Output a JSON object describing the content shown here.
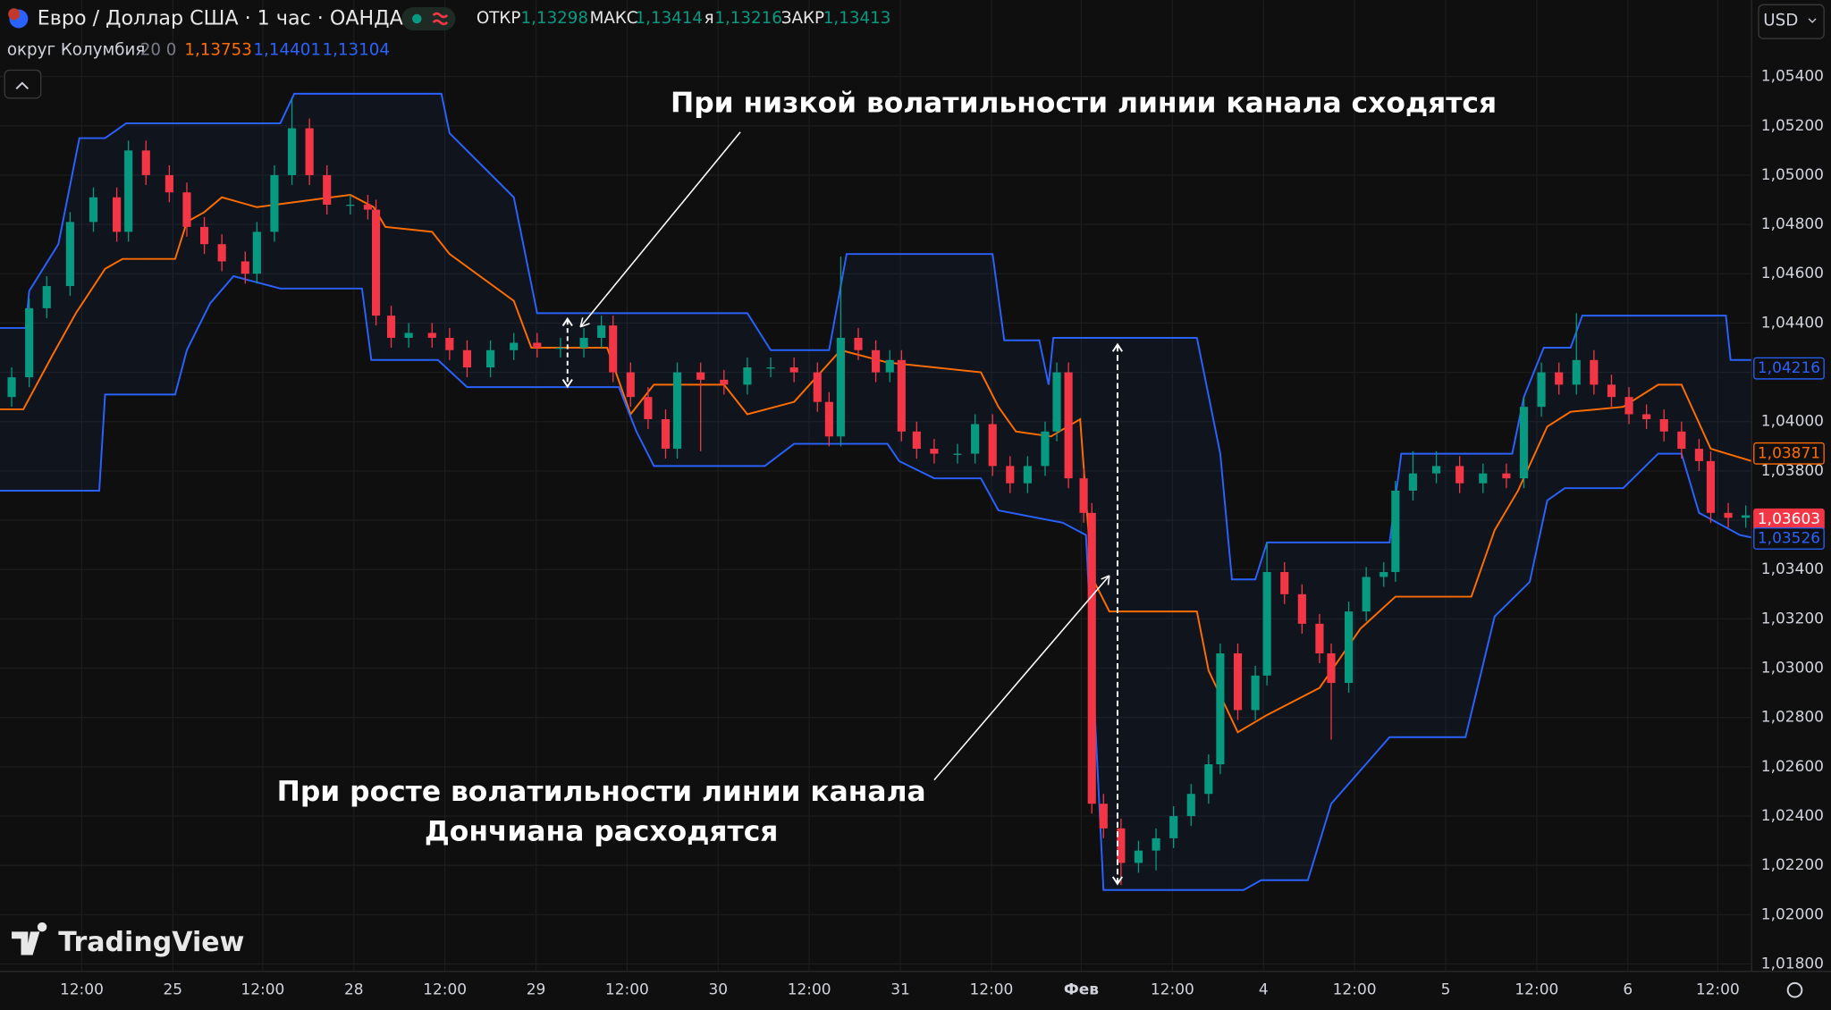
{
  "header": {
    "symbol": "Евро / Доллар США · 1 час · ОАНДА",
    "open_label": "ОТКР",
    "open": "1,13298",
    "high_label": "МАКС",
    "high": "1,13414",
    "low_label": "я",
    "low": "1,13216",
    "close_label": "ЗАКР",
    "close": "1,13413",
    "currency": "USD"
  },
  "indicator": {
    "name": "округ Колумбия",
    "params": "20 0",
    "middle": "1,13753",
    "upper": "1,14401",
    "lower": "1,13104"
  },
  "brand": "TradingView",
  "chart_data": {
    "type": "candlestick",
    "up_color": "#089981",
    "down_color": "#f23645",
    "grid": true,
    "annotations": [
      "При низкой волатильности линии канала сходятся",
      "При росте волатильности линии канала",
      "Дончиана расходятся"
    ],
    "ylim": [
      1.0177,
      1.0571
    ],
    "yticks": [
      {
        "value": 1.018,
        "label": "1,01800"
      },
      {
        "value": 1.02,
        "label": "1,02000"
      },
      {
        "value": 1.022,
        "label": "1,02200"
      },
      {
        "value": 1.024,
        "label": "1,02400"
      },
      {
        "value": 1.026,
        "label": "1,02600"
      },
      {
        "value": 1.028,
        "label": "1,02800"
      },
      {
        "value": 1.03,
        "label": "1,03000"
      },
      {
        "value": 1.032,
        "label": "1,03200"
      },
      {
        "value": 1.034,
        "label": "1,03400"
      },
      {
        "value": 1.036,
        "label": "1,03600"
      },
      {
        "value": 1.038,
        "label": "1,03800"
      },
      {
        "value": 1.04,
        "label": "1,04000"
      },
      {
        "value": 1.042,
        "label": "1,04200"
      },
      {
        "value": 1.044,
        "label": "1,04400"
      },
      {
        "value": 1.046,
        "label": "1,04600"
      },
      {
        "value": 1.048,
        "label": "1,04800"
      },
      {
        "value": 1.05,
        "label": "1,05000"
      },
      {
        "value": 1.052,
        "label": "1,05200"
      },
      {
        "value": 1.054,
        "label": "1,05400"
      }
    ],
    "xlim": [
      0,
      150
    ],
    "xticks": [
      {
        "value": 7,
        "label": "12:00"
      },
      {
        "value": 14.8,
        "label": "25"
      },
      {
        "value": 22.5,
        "label": "12:00"
      },
      {
        "value": 30.3,
        "label": "28"
      },
      {
        "value": 38.1,
        "label": "12:00"
      },
      {
        "value": 45.9,
        "label": "29"
      },
      {
        "value": 53.7,
        "label": "12:00"
      },
      {
        "value": 61.5,
        "label": "30"
      },
      {
        "value": 69.3,
        "label": "12:00"
      },
      {
        "value": 77.1,
        "label": "31"
      },
      {
        "value": 84.9,
        "label": "12:00"
      },
      {
        "value": 92.6,
        "label": "Фев"
      },
      {
        "value": 100.4,
        "label": "12:00"
      },
      {
        "value": 108.2,
        "label": "4"
      },
      {
        "value": 116,
        "label": "12:00"
      },
      {
        "value": 123.8,
        "label": "5"
      },
      {
        "value": 131.6,
        "label": "12:00"
      },
      {
        "value": 139.4,
        "label": "6"
      },
      {
        "value": 147.1,
        "label": "12:00"
      }
    ],
    "candles": {
      "x": [
        1,
        2.5,
        4,
        6,
        8,
        10,
        11,
        12.5,
        14.5,
        16,
        17.5,
        19,
        21,
        22,
        23.5,
        25,
        26.5,
        28,
        30,
        31.5,
        32.2,
        33.5,
        35,
        37,
        38.5,
        40,
        42,
        44,
        46,
        48,
        50,
        51.5,
        52.5,
        54,
        55.5,
        57,
        58,
        60,
        62,
        64,
        66,
        68,
        70,
        71,
        72,
        73.5,
        75,
        76.2,
        77.2,
        78.5,
        80,
        82,
        83.5,
        85,
        86.5,
        88,
        89.5,
        90.5,
        91.5,
        92.8,
        93.5,
        94.5,
        96,
        97.5,
        99,
        100.5,
        102,
        103.5,
        104.5,
        106,
        107.5,
        108.5,
        110,
        111.5,
        113,
        114,
        115.5,
        117,
        118.5,
        119.5,
        121,
        123,
        125,
        127,
        129,
        130.5,
        132,
        133.5,
        135,
        136.5,
        138,
        139.5,
        141,
        142.5,
        144,
        145.5,
        146.5,
        148,
        149.5
      ],
      "open": [
        1.041,
        1.0418,
        1.0446,
        1.0455,
        1.0481,
        1.0491,
        1.0477,
        1.051,
        1.05,
        1.0493,
        1.0479,
        1.0472,
        1.0465,
        1.046,
        1.0477,
        1.05,
        1.0519,
        1.05,
        1.0488,
        1.0488,
        1.0486,
        1.0443,
        1.0434,
        1.0436,
        1.0434,
        1.0429,
        1.0422,
        1.0429,
        1.0432,
        1.043,
        1.043,
        1.0434,
        1.0439,
        1.042,
        1.041,
        1.0401,
        1.0389,
        1.042,
        1.0417,
        1.0415,
        1.0422,
        1.0422,
        1.042,
        1.0408,
        1.0394,
        1.0434,
        1.0429,
        1.042,
        1.0425,
        1.0396,
        1.0389,
        1.0387,
        1.0387,
        1.0399,
        1.0382,
        1.0375,
        1.0382,
        1.0396,
        1.042,
        1.0377,
        1.0363,
        1.0245,
        1.0235,
        1.0221,
        1.0226,
        1.0231,
        1.024,
        1.0249,
        1.0261,
        1.0306,
        1.0283,
        1.0297,
        1.0339,
        1.033,
        1.0318,
        1.0306,
        1.0294,
        1.0323,
        1.0337,
        1.0339,
        1.0372,
        1.0379,
        1.0382,
        1.0375,
        1.0379,
        1.0377,
        1.0406,
        1.042,
        1.0415,
        1.0425,
        1.0415,
        1.041,
        1.0403,
        1.0401,
        1.0396,
        1.0389,
        1.0384,
        1.0363,
        1.0361
      ],
      "high": [
        1.0422,
        1.045,
        1.0459,
        1.0485,
        1.0495,
        1.0495,
        1.0514,
        1.0514,
        1.0504,
        1.0497,
        1.0483,
        1.0476,
        1.0469,
        1.0481,
        1.0504,
        1.0531,
        1.0523,
        1.0504,
        1.0492,
        1.0492,
        1.049,
        1.0447,
        1.044,
        1.044,
        1.0438,
        1.0433,
        1.0433,
        1.0436,
        1.0436,
        1.0434,
        1.0438,
        1.0443,
        1.0443,
        1.0424,
        1.0414,
        1.0405,
        1.0424,
        1.0424,
        1.0421,
        1.0426,
        1.0426,
        1.0426,
        1.0424,
        1.0412,
        1.0467,
        1.0438,
        1.0433,
        1.0429,
        1.0429,
        1.04,
        1.0393,
        1.0391,
        1.0403,
        1.0403,
        1.0386,
        1.0386,
        1.04,
        1.0424,
        1.0424,
        1.0381,
        1.0367,
        1.0249,
        1.0239,
        1.023,
        1.0235,
        1.0244,
        1.0253,
        1.0265,
        1.031,
        1.031,
        1.0301,
        1.0351,
        1.0343,
        1.0334,
        1.0322,
        1.031,
        1.0327,
        1.0341,
        1.0343,
        1.0376,
        1.0388,
        1.0388,
        1.0386,
        1.0383,
        1.0383,
        1.041,
        1.0424,
        1.0424,
        1.0444,
        1.0429,
        1.0419,
        1.0414,
        1.0407,
        1.0405,
        1.04,
        1.0393,
        1.0388,
        1.0367,
        1.0366
      ],
      "low": [
        1.0406,
        1.0414,
        1.0442,
        1.0451,
        1.0477,
        1.0473,
        1.0473,
        1.0496,
        1.0489,
        1.0475,
        1.0468,
        1.0461,
        1.0456,
        1.0456,
        1.0473,
        1.0496,
        1.0496,
        1.0484,
        1.0484,
        1.0482,
        1.0439,
        1.043,
        1.043,
        1.043,
        1.0425,
        1.0418,
        1.0418,
        1.0425,
        1.0426,
        1.0426,
        1.0426,
        1.043,
        1.0416,
        1.0406,
        1.0397,
        1.0385,
        1.0385,
        1.0388,
        1.0411,
        1.0411,
        1.0418,
        1.0416,
        1.0404,
        1.039,
        1.039,
        1.0425,
        1.0416,
        1.0416,
        1.0392,
        1.0385,
        1.0383,
        1.0383,
        1.0383,
        1.0378,
        1.0371,
        1.0371,
        1.0378,
        1.0392,
        1.0373,
        1.0359,
        1.0241,
        1.0231,
        1.0212,
        1.0217,
        1.0218,
        1.0227,
        1.0236,
        1.0245,
        1.0257,
        1.0279,
        1.0279,
        1.0293,
        1.0326,
        1.0314,
        1.0302,
        1.0271,
        1.029,
        1.0319,
        1.0333,
        1.0335,
        1.0368,
        1.0375,
        1.0371,
        1.0371,
        1.0373,
        1.0373,
        1.0402,
        1.0411,
        1.0411,
        1.0411,
        1.0406,
        1.0399,
        1.0397,
        1.0392,
        1.0385,
        1.038,
        1.0359,
        1.0357,
        1.0357
      ],
      "close": [
        1.0418,
        1.0446,
        1.0455,
        1.0481,
        1.0491,
        1.0477,
        1.051,
        1.05,
        1.0493,
        1.0479,
        1.0472,
        1.0465,
        1.046,
        1.0477,
        1.05,
        1.0519,
        1.05,
        1.0488,
        1.0488,
        1.0486,
        1.0443,
        1.0434,
        1.0436,
        1.0434,
        1.0429,
        1.0422,
        1.0429,
        1.0432,
        1.043,
        1.043,
        1.0434,
        1.0439,
        1.042,
        1.041,
        1.0401,
        1.0389,
        1.042,
        1.0417,
        1.0415,
        1.0422,
        1.0422,
        1.042,
        1.0408,
        1.0394,
        1.0434,
        1.0429,
        1.042,
        1.0425,
        1.0396,
        1.0389,
        1.0387,
        1.0387,
        1.0399,
        1.0382,
        1.0375,
        1.0382,
        1.0396,
        1.042,
        1.0377,
        1.0363,
        1.0245,
        1.0235,
        1.0221,
        1.0226,
        1.0231,
        1.024,
        1.0249,
        1.0261,
        1.0306,
        1.0283,
        1.0297,
        1.0339,
        1.033,
        1.0318,
        1.0306,
        1.0294,
        1.0323,
        1.0337,
        1.0339,
        1.0372,
        1.0379,
        1.0382,
        1.0375,
        1.0379,
        1.0377,
        1.0406,
        1.042,
        1.0415,
        1.0425,
        1.0415,
        1.041,
        1.0403,
        1.0401,
        1.0396,
        1.0389,
        1.0384,
        1.0363,
        1.0361,
        1.0362
      ]
    },
    "series": [
      {
        "color": "#2962ff",
        "x": [
          0,
          2.2,
          2.5,
          5,
          6.8,
          9,
          10.8,
          12.5,
          24,
          25.2,
          37.8,
          38.5,
          44,
          46,
          64,
          66,
          71,
          72.5,
          85,
          86,
          89,
          89.8,
          90.2,
          102.5,
          104.5,
          105.5,
          107.5,
          108.5,
          119,
          120,
          129.5,
          130.5,
          132.2,
          134.5,
          135.5,
          147.8,
          148.2,
          150
        ],
        "values": [
          1.0438,
          1.0438,
          1.0453,
          1.0472,
          1.0515,
          1.0515,
          1.0521,
          1.0521,
          1.0521,
          1.0533,
          1.0533,
          1.0517,
          1.0491,
          1.0444,
          1.0444,
          1.0429,
          1.0429,
          1.0468,
          1.0468,
          1.0433,
          1.0433,
          1.0415,
          1.0434,
          1.0434,
          1.0387,
          1.0336,
          1.0336,
          1.0351,
          1.0351,
          1.0387,
          1.0387,
          1.041,
          1.043,
          1.043,
          1.0443,
          1.0443,
          1.0425,
          1.0425
        ]
      },
      {
        "color": "#ff6d00",
        "x": [
          0,
          2,
          4.5,
          6.5,
          9,
          10.5,
          15,
          16,
          17.5,
          19,
          22,
          30,
          32,
          33,
          37,
          38.5,
          44,
          45.5,
          52,
          54,
          56,
          62,
          64,
          68,
          72,
          76,
          84,
          85.5,
          87,
          90,
          92.5,
          93.5,
          95,
          102.5,
          103.5,
          106,
          108.5,
          113,
          116.5,
          119.5,
          126,
          128,
          130,
          132.5,
          134.5,
          139,
          142,
          144,
          146.5,
          150
        ],
        "values": [
          1.0405,
          1.0405,
          1.0427,
          1.0444,
          1.0462,
          1.0466,
          1.0466,
          1.0481,
          1.0485,
          1.0491,
          1.0487,
          1.0492,
          1.0487,
          1.0479,
          1.0477,
          1.0468,
          1.0449,
          1.043,
          1.043,
          1.0403,
          1.0415,
          1.0415,
          1.0403,
          1.0408,
          1.0429,
          1.0424,
          1.042,
          1.0406,
          1.0396,
          1.0394,
          1.0401,
          1.0337,
          1.0323,
          1.0323,
          1.0299,
          1.0274,
          1.0281,
          1.0292,
          1.0316,
          1.0329,
          1.0329,
          1.0356,
          1.0372,
          1.0398,
          1.0404,
          1.0406,
          1.0415,
          1.0415,
          1.0389,
          1.0384
        ]
      },
      {
        "color": "#2962ff",
        "x": [
          0,
          8.5,
          9,
          15,
          16,
          18,
          20,
          24,
          31,
          31.8,
          37.5,
          40,
          53,
          54.5,
          56,
          65.5,
          68,
          76,
          77,
          80,
          84,
          85.5,
          91,
          93,
          94.5,
          106.5,
          108,
          112,
          114,
          119,
          125.5,
          128,
          131,
          132.5,
          134,
          139,
          142,
          144,
          145.5,
          149,
          150
        ],
        "values": [
          1.0372,
          1.0372,
          1.0411,
          1.0411,
          1.0429,
          1.0448,
          1.0459,
          1.0454,
          1.0454,
          1.0425,
          1.0425,
          1.0414,
          1.0414,
          1.0396,
          1.0382,
          1.0382,
          1.0391,
          1.0391,
          1.0384,
          1.0377,
          1.0377,
          1.0364,
          1.0359,
          1.0354,
          1.021,
          1.021,
          1.0214,
          1.0214,
          1.0245,
          1.0272,
          1.0272,
          1.0321,
          1.0335,
          1.0368,
          1.0373,
          1.0373,
          1.0387,
          1.0387,
          1.0363,
          1.0354,
          1.0353
        ]
      }
    ],
    "price_labels": [
      {
        "value": 1.04216,
        "label": "1,04216",
        "color": "#2962ff",
        "filled": false
      },
      {
        "value": 1.03871,
        "label": "1,03871",
        "color": "#ff6d00",
        "filled": false
      },
      {
        "value": 1.03603,
        "label": "1,03603",
        "color": "#f23645",
        "filled": true
      },
      {
        "value": 1.03526,
        "label": "1,03526",
        "color": "#2962ff",
        "filled": false
      }
    ]
  }
}
